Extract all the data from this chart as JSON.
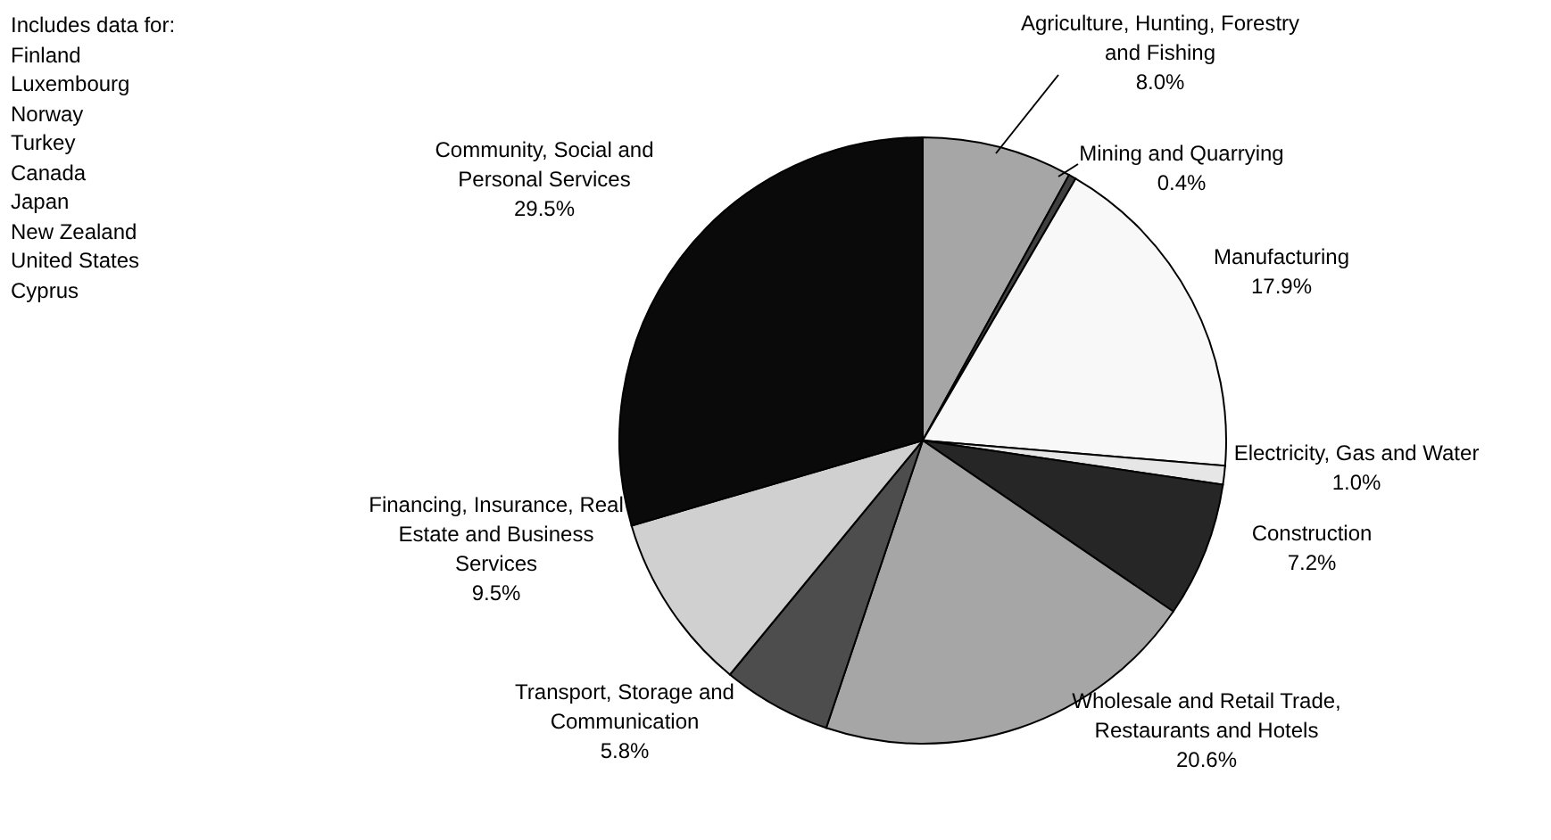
{
  "chart_data": {
    "type": "pie",
    "categories": [
      "Agriculture, Hunting, Forestry and Fishing",
      "Mining and Quarrying",
      "Manufacturing",
      "Electricity, Gas and Water",
      "Construction",
      "Wholesale and Retail Trade, Restaurants and Hotels",
      "Transport, Storage and Communication",
      "Financing, Insurance, Real Estate and Business Services",
      "Community, Social and Personal Services"
    ],
    "values": [
      8.0,
      0.4,
      17.9,
      1.0,
      7.2,
      20.6,
      5.8,
      9.5,
      29.5
    ],
    "value_labels": [
      "8.0%",
      "0.4%",
      "17.9%",
      "1.0%",
      "7.2%",
      "20.6%",
      "5.8%",
      "9.5%",
      "29.5%"
    ],
    "colors": [
      "#a6a6a6",
      "#404040",
      "#f8f8f8",
      "#e6e6e6",
      "#262626",
      "#a6a6a6",
      "#4d4d4d",
      "#d0d0d0",
      "#0a0a0a"
    ],
    "annotations": [
      "Includes data for:",
      "Finland",
      "Luxembourg",
      "Norway",
      "Turkey",
      "Canada",
      "Japan",
      "New Zealand",
      "United States",
      "Cyprus"
    ],
    "legend": false
  }
}
